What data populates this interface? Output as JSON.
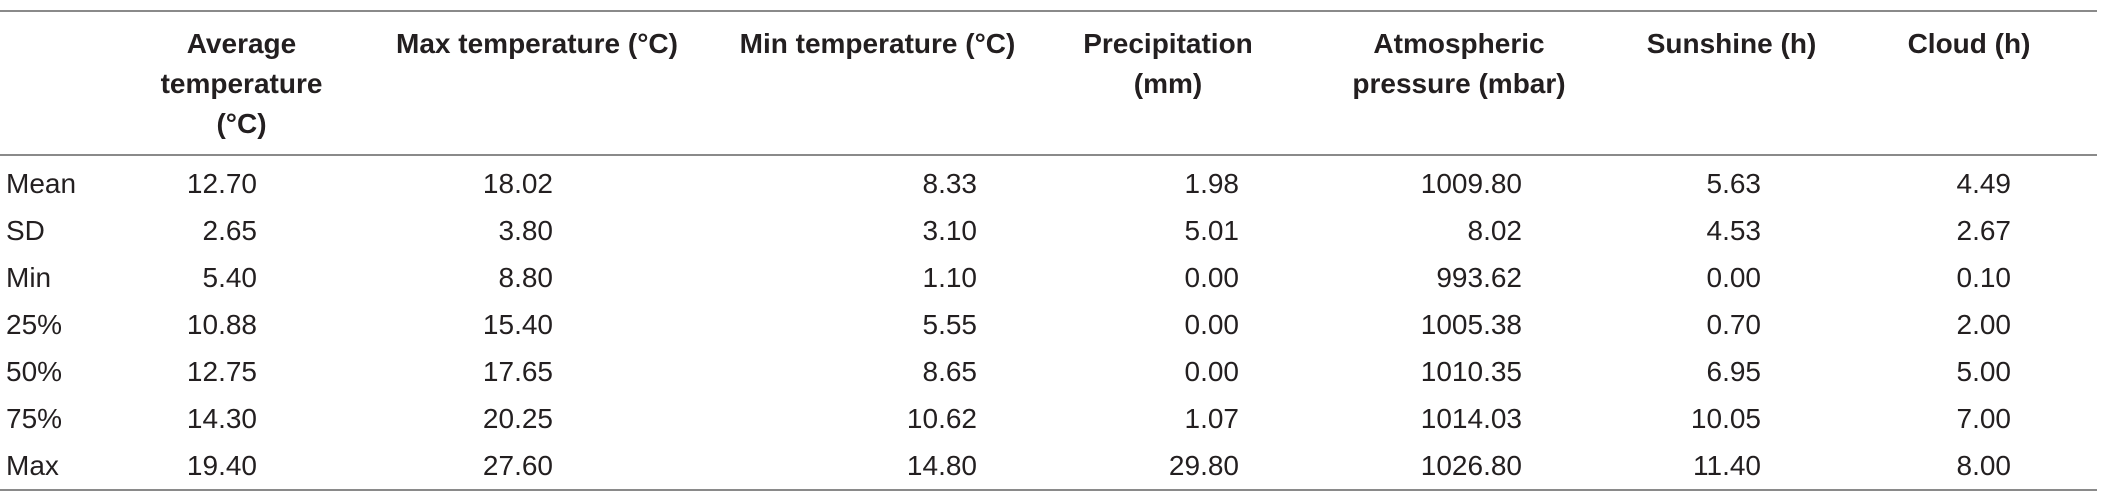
{
  "table": {
    "headers": [
      "",
      "Average temperature (°C)",
      "Max temperature (°C)",
      "Min temperature (°C)",
      "Precipitation (mm)",
      "Atmospheric pressure (mbar)",
      "Sunshine (h)",
      "Cloud (h)"
    ],
    "rows": [
      [
        "Mean",
        "12.70",
        "18.02",
        "8.33",
        "1.98",
        "1009.80",
        "5.63",
        "4.49"
      ],
      [
        "SD",
        "2.65",
        "3.80",
        "3.10",
        "5.01",
        "8.02",
        "4.53",
        "2.67"
      ],
      [
        "Min",
        "5.40",
        "8.80",
        "1.10",
        "0.00",
        "993.62",
        "0.00",
        "0.10"
      ],
      [
        "25%",
        "10.88",
        "15.40",
        "5.55",
        "0.00",
        "1005.38",
        "0.70",
        "2.00"
      ],
      [
        "50%",
        "12.75",
        "17.65",
        "8.65",
        "0.00",
        "1010.35",
        "6.95",
        "5.00"
      ],
      [
        "75%",
        "14.30",
        "20.25",
        "10.62",
        "1.07",
        "1014.03",
        "10.05",
        "7.00"
      ],
      [
        "Max",
        "19.40",
        "27.60",
        "14.80",
        "29.80",
        "1026.80",
        "11.40",
        "8.00"
      ]
    ]
  }
}
